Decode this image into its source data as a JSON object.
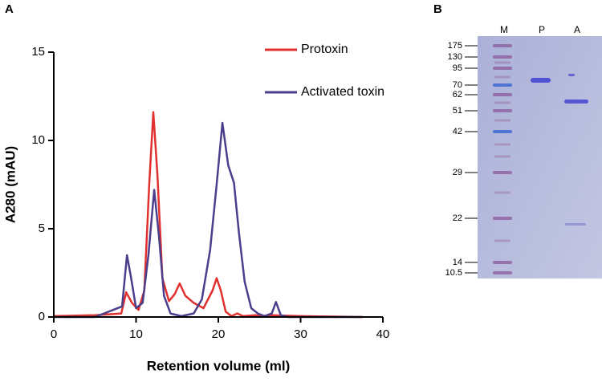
{
  "chart_data": {
    "type": "line",
    "panel_label": "A",
    "xlabel": "Retention volume (ml)",
    "ylabel": "A280 (mAU)",
    "xlim": [
      0,
      40
    ],
    "ylim": [
      0,
      15
    ],
    "xticks": [
      0,
      10,
      20,
      30,
      40
    ],
    "yticks": [
      0,
      5,
      10,
      15
    ],
    "legend": "upper right",
    "series": [
      {
        "name": "Protoxin",
        "color": "#e0312f",
        "x": [
          0,
          5,
          8.2,
          8.8,
          9.5,
          10.3,
          11.0,
          11.6,
          12.1,
          12.6,
          13.2,
          14.0,
          14.7,
          15.3,
          16.0,
          17.0,
          18.2,
          19.3,
          19.8,
          20.3,
          20.9,
          21.6,
          22.3,
          23.0,
          24.5,
          25.3,
          26.5,
          30,
          37.5
        ],
        "values": [
          0.05,
          0.1,
          0.2,
          1.4,
          0.8,
          0.4,
          1.5,
          7.5,
          11.6,
          8.0,
          2.2,
          0.9,
          1.3,
          1.9,
          1.2,
          0.8,
          0.5,
          1.5,
          2.2,
          1.5,
          0.3,
          0.05,
          0.2,
          0.05,
          0.1,
          0.05,
          0.1,
          0.05,
          0.0
        ]
      },
      {
        "name": "Activated toxin",
        "color": "#4b3f8c",
        "x": [
          0,
          5,
          8.3,
          8.9,
          9.4,
          10.0,
          10.8,
          11.5,
          12.2,
          12.8,
          13.4,
          14.2,
          15.5,
          17.0,
          18.0,
          19.0,
          19.8,
          20.5,
          21.2,
          21.9,
          22.5,
          23.2,
          24.0,
          24.8,
          25.6,
          26.5,
          27.0,
          27.6,
          28.5,
          37.5
        ],
        "values": [
          0.0,
          0.0,
          0.6,
          3.5,
          2.2,
          0.5,
          0.8,
          3.5,
          7.2,
          4.5,
          1.2,
          0.2,
          0.05,
          0.2,
          1.0,
          3.8,
          7.5,
          11.0,
          8.6,
          7.6,
          4.8,
          2.0,
          0.5,
          0.2,
          0.05,
          0.2,
          0.85,
          0.1,
          0.0,
          0.0
        ]
      }
    ]
  },
  "gel": {
    "panel_label": "B",
    "lanes": [
      "M",
      "P",
      "A"
    ],
    "markers": [
      "175",
      "130",
      "95",
      "70",
      "62",
      "51",
      "42",
      "29",
      "22",
      "14",
      "10.5"
    ]
  }
}
